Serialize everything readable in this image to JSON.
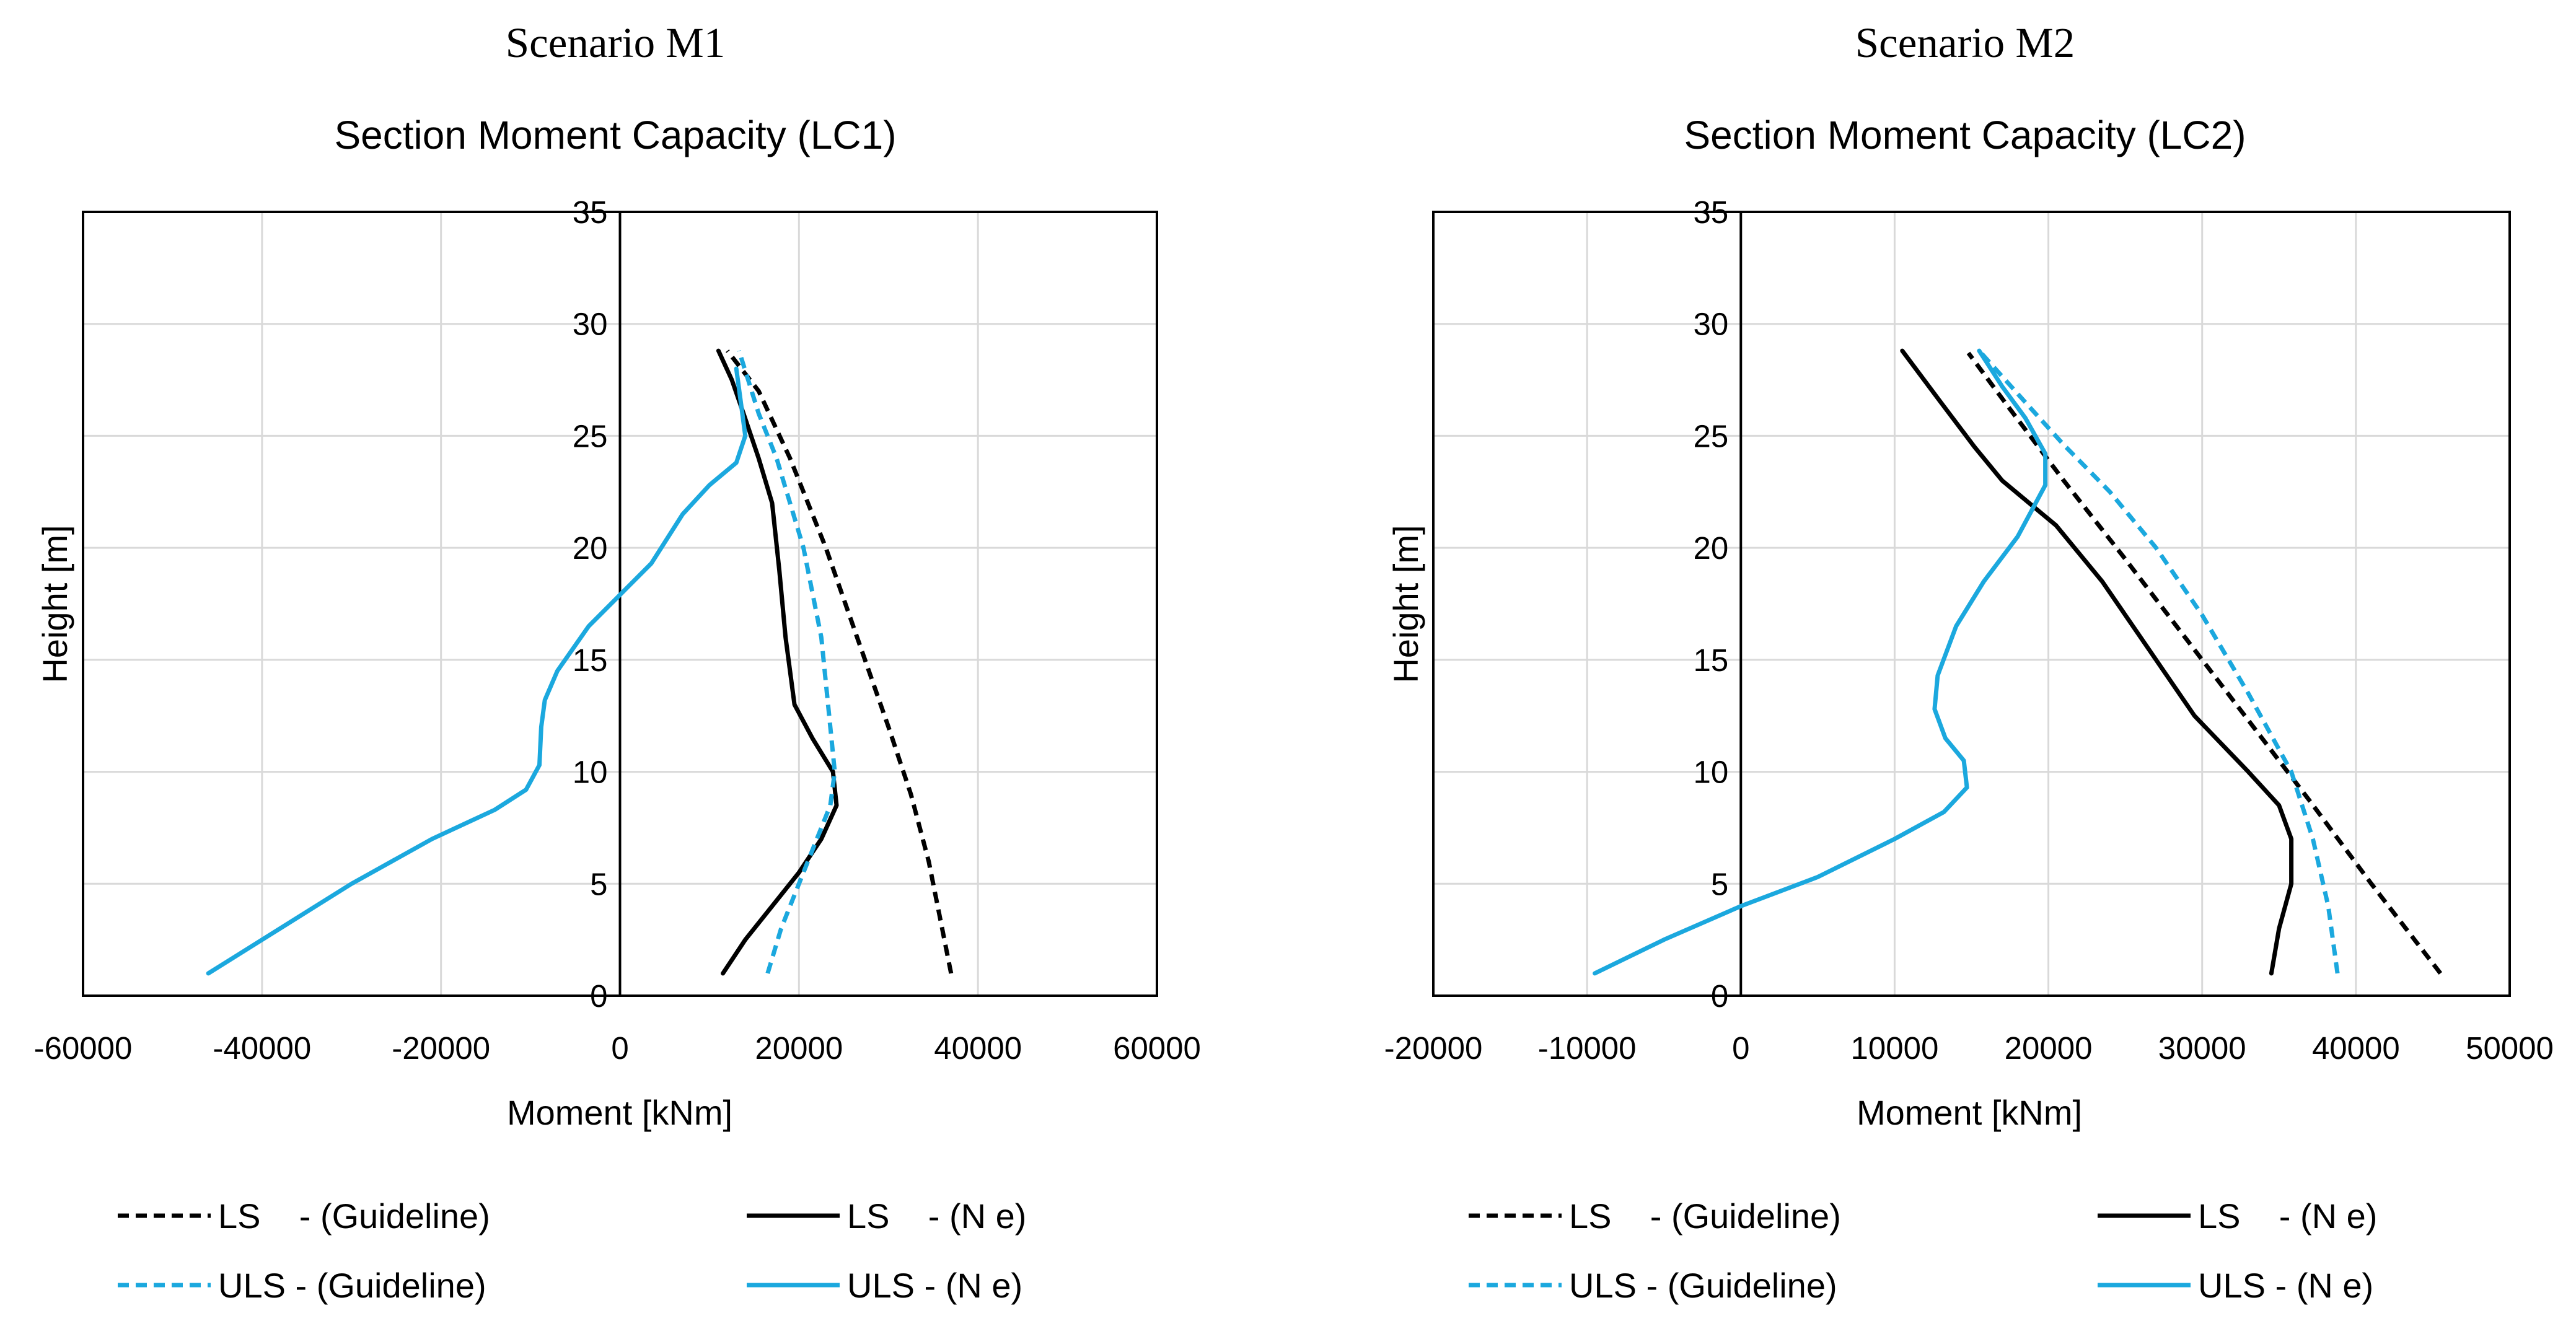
{
  "colors": {
    "ls": "#000000",
    "uls": "#1BA8DE",
    "grid": "#d9d9d9",
    "axis": "#000000"
  },
  "legend_labels": {
    "ls_guideline": "LS    - (Guideline)",
    "ls_ne": "LS    - (N e)",
    "uls_guideline": "ULS - (Guideline)",
    "uls_ne": "ULS - (N e)"
  },
  "chart_data": [
    {
      "type": "line",
      "scenario": "Scenario M1",
      "title": "Section Moment Capacity (LC1)",
      "xlabel": "Moment [kNm]",
      "ylabel": "Height [m]",
      "xlim": [
        -60000,
        60000
      ],
      "ylim": [
        0,
        35
      ],
      "x_ticks": [
        -60000,
        -40000,
        -20000,
        0,
        20000,
        40000,
        60000
      ],
      "x_tick_labels": [
        "-60000",
        "-40000",
        "-20000",
        "0",
        "20000",
        "40000",
        "60000"
      ],
      "y_ticks": [
        0,
        5,
        10,
        15,
        20,
        25,
        30,
        35
      ],
      "y_tick_labels": [
        "0",
        "5",
        "10",
        "15",
        "20",
        "25",
        "30",
        "35"
      ],
      "grid": true,
      "series": [
        {
          "name": "LS    - (Guideline)",
          "key": "ls",
          "dash": true,
          "points": [
            [
              37000,
              1
            ],
            [
              36000,
              3
            ],
            [
              34500,
              6
            ],
            [
              32500,
              9
            ],
            [
              30000,
              12
            ],
            [
              26500,
              16
            ],
            [
              23000,
              20
            ],
            [
              19000,
              24
            ],
            [
              15500,
              27
            ],
            [
              12000,
              28.8
            ]
          ]
        },
        {
          "name": "LS    - (N e)",
          "key": "ls",
          "dash": false,
          "points": [
            [
              11500,
              1
            ],
            [
              14000,
              2.5
            ],
            [
              17000,
              4
            ],
            [
              20000,
              5.5
            ],
            [
              22500,
              7
            ],
            [
              24200,
              8.5
            ],
            [
              23800,
              10
            ],
            [
              21500,
              11.5
            ],
            [
              19500,
              13
            ],
            [
              18500,
              16
            ],
            [
              17800,
              19
            ],
            [
              17000,
              22
            ],
            [
              15500,
              24
            ],
            [
              13800,
              26
            ],
            [
              12500,
              27.5
            ],
            [
              11000,
              28.8
            ]
          ]
        },
        {
          "name": "ULS - (Guideline)",
          "key": "uls",
          "dash": true,
          "points": [
            [
              16500,
              1
            ],
            [
              18000,
              3
            ],
            [
              20000,
              5
            ],
            [
              22000,
              7
            ],
            [
              23500,
              8.5
            ],
            [
              24000,
              10
            ],
            [
              23500,
              12
            ],
            [
              22500,
              16
            ],
            [
              20500,
              20
            ],
            [
              17500,
              24
            ],
            [
              15500,
              26
            ],
            [
              13300,
              28.8
            ]
          ]
        },
        {
          "name": "ULS - (N e)",
          "key": "uls",
          "dash": false,
          "points": [
            [
              -46000,
              1
            ],
            [
              -38000,
              3
            ],
            [
              -30000,
              5
            ],
            [
              -21000,
              7
            ],
            [
              -14000,
              8.3
            ],
            [
              -10500,
              9.2
            ],
            [
              -9000,
              10.3
            ],
            [
              -8800,
              12
            ],
            [
              -8400,
              13.2
            ],
            [
              -7000,
              14.5
            ],
            [
              -3500,
              16.5
            ],
            [
              0,
              17.9
            ],
            [
              3500,
              19.3
            ],
            [
              7000,
              21.5
            ],
            [
              10000,
              22.8
            ],
            [
              13000,
              23.8
            ],
            [
              14000,
              25
            ],
            [
              13500,
              26.5
            ],
            [
              13000,
              28
            ]
          ]
        }
      ]
    },
    {
      "type": "line",
      "scenario": "Scenario M2",
      "title": "Section Moment Capacity (LC2)",
      "xlabel": "Moment [kNm]",
      "ylabel": "Height [m]",
      "xlim": [
        -20000,
        50000
      ],
      "ylim": [
        0,
        35
      ],
      "x_ticks": [
        -20000,
        -10000,
        0,
        10000,
        20000,
        30000,
        40000,
        50000
      ],
      "x_tick_labels": [
        "-20000",
        "-10000",
        "0",
        "10000",
        "20000",
        "30000",
        "40000",
        "50000"
      ],
      "y_ticks": [
        0,
        5,
        10,
        15,
        20,
        25,
        30,
        35
      ],
      "y_tick_labels": [
        "0",
        "5",
        "10",
        "15",
        "20",
        "25",
        "30",
        "35"
      ],
      "grid": true,
      "series": [
        {
          "name": "LS    - (Guideline)",
          "key": "ls",
          "dash": true,
          "points": [
            [
              45500,
              1
            ],
            [
              41000,
              5
            ],
            [
              37000,
              8.7
            ],
            [
              33000,
              12.3
            ],
            [
              29000,
              15.9
            ],
            [
              25000,
              19.5
            ],
            [
              21000,
              23
            ],
            [
              17500,
              26.2
            ],
            [
              14800,
              28.7
            ]
          ]
        },
        {
          "name": "LS    - (N e)",
          "key": "ls",
          "dash": false,
          "points": [
            [
              34500,
              1
            ],
            [
              35000,
              3
            ],
            [
              35800,
              5
            ],
            [
              35800,
              7
            ],
            [
              35000,
              8.5
            ],
            [
              33000,
              10
            ],
            [
              29500,
              12.5
            ],
            [
              26500,
              15.5
            ],
            [
              23500,
              18.5
            ],
            [
              20500,
              21
            ],
            [
              17000,
              23
            ],
            [
              15200,
              24.5
            ],
            [
              13000,
              26.5
            ],
            [
              10500,
              28.8
            ]
          ]
        },
        {
          "name": "ULS - (Guideline)",
          "key": "uls",
          "dash": true,
          "points": [
            [
              38800,
              1
            ],
            [
              38200,
              4
            ],
            [
              37200,
              7
            ],
            [
              35800,
              10
            ],
            [
              33000,
              13.5
            ],
            [
              30000,
              17
            ],
            [
              27000,
              20
            ],
            [
              24000,
              22.5
            ],
            [
              21000,
              24.6
            ],
            [
              18500,
              26.5
            ],
            [
              15500,
              28.8
            ]
          ]
        },
        {
          "name": "ULS - (N e)",
          "key": "uls",
          "dash": false,
          "points": [
            [
              -9500,
              1
            ],
            [
              -5000,
              2.5
            ],
            [
              0,
              4
            ],
            [
              5000,
              5.3
            ],
            [
              10000,
              7
            ],
            [
              13200,
              8.2
            ],
            [
              14700,
              9.3
            ],
            [
              14500,
              10.5
            ],
            [
              13300,
              11.5
            ],
            [
              12600,
              12.8
            ],
            [
              12800,
              14.3
            ],
            [
              14000,
              16.5
            ],
            [
              15800,
              18.5
            ],
            [
              18000,
              20.5
            ],
            [
              19800,
              22.8
            ],
            [
              19800,
              24.2
            ],
            [
              18500,
              25.8
            ],
            [
              17000,
              27.2
            ],
            [
              15500,
              28.8
            ]
          ]
        }
      ]
    }
  ]
}
